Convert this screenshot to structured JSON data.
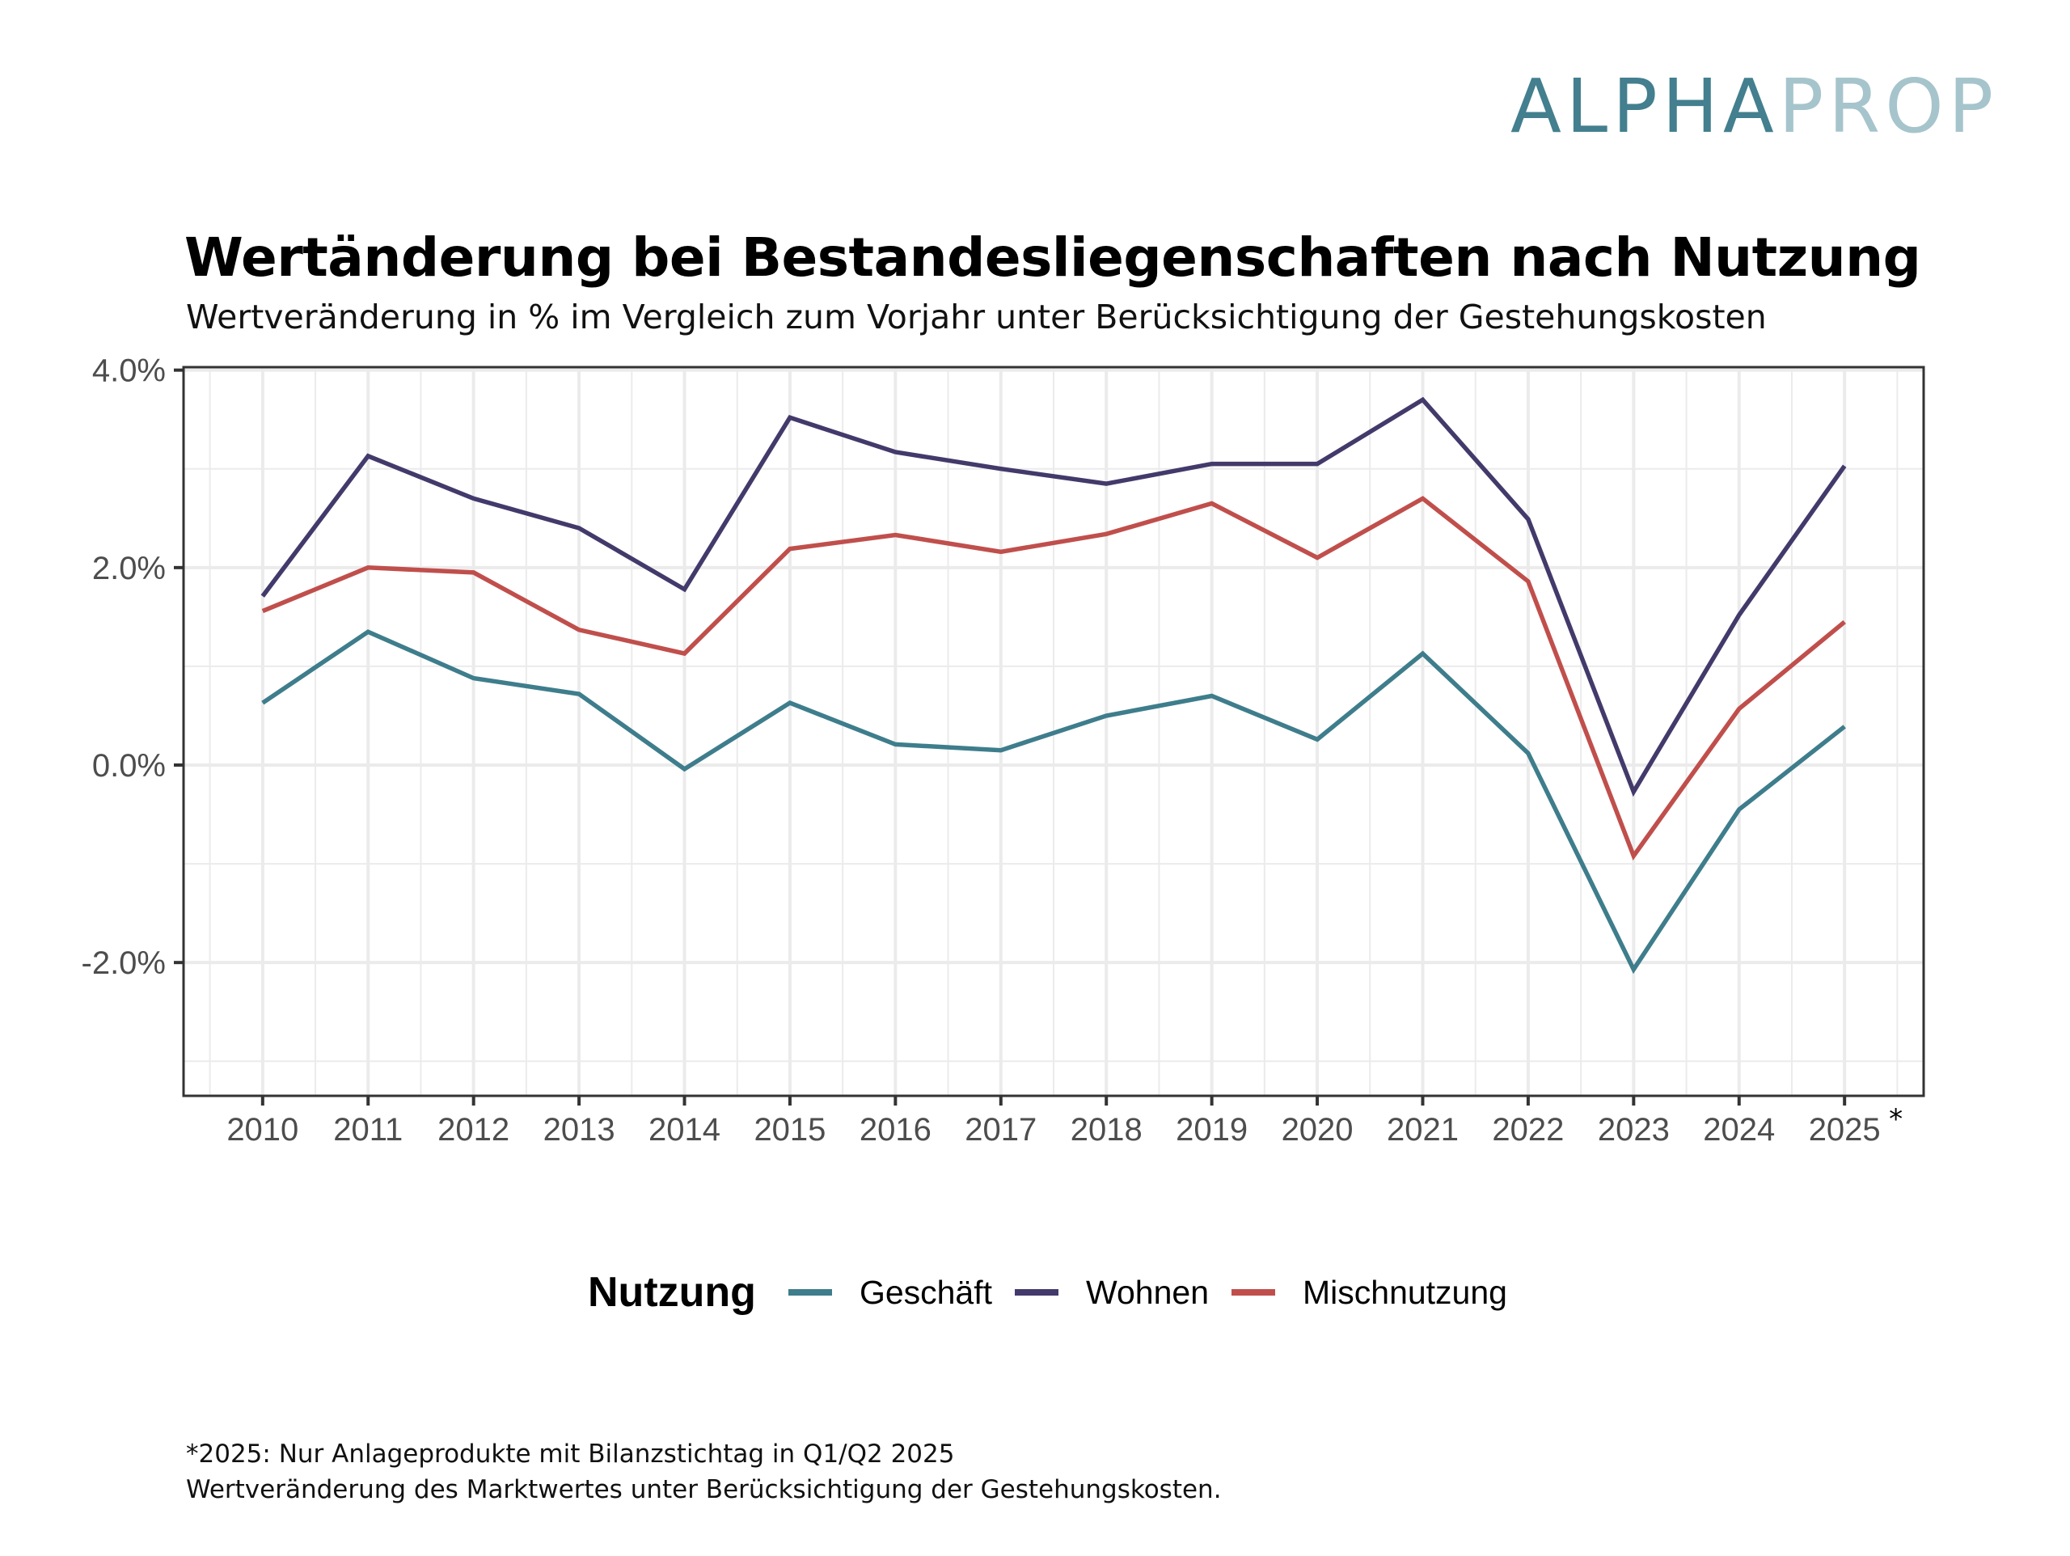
{
  "logo": {
    "part1": "ALPHA",
    "part2": "PROP"
  },
  "header": {
    "title": "Wertänderung bei Bestandesliegenschaften nach Nutzung",
    "subtitle": "Wertveränderung in % im Vergleich zum Vorjahr unter Berücksichtigung der Gestehungskosten"
  },
  "legend": {
    "title": "Nutzung",
    "items": [
      {
        "label": "Geschäft",
        "color": "#3E7D8C"
      },
      {
        "label": "Wohnen",
        "color": "#433A6B"
      },
      {
        "label": "Mischnutzung",
        "color": "#C04F4C"
      }
    ]
  },
  "footnote": {
    "line1": "*2025: Nur Anlageprodukte mit Bilanzstichtag in Q1/Q2 2025",
    "line2": "Wertveränderung des Marktwertes unter Berücksichtigung der Gestehungskosten."
  },
  "chart_data": {
    "type": "line",
    "title": "Wertänderung bei Bestandesliegenschaften nach Nutzung",
    "subtitle": "Wertveränderung in % im Vergleich zum Vorjahr unter Berücksichtigung der Gestehungskosten",
    "xlabel": "",
    "ylabel": "",
    "x": [
      2010,
      2011,
      2012,
      2013,
      2014,
      2015,
      2016,
      2017,
      2018,
      2019,
      2020,
      2021,
      2022,
      2023,
      2024,
      2025
    ],
    "x_tick_labels": [
      "2010",
      "2011",
      "2012",
      "2013",
      "2014",
      "2015",
      "2016",
      "2017",
      "2018",
      "2019",
      "2020",
      "2021",
      "2022",
      "2023",
      "2024",
      "2025"
    ],
    "x_annotation": {
      "x": 2025,
      "text": "*"
    },
    "xlim": [
      2009.25,
      2025.75
    ],
    "ylim": [
      -3.35,
      4.03
    ],
    "y_ticks": [
      4.0,
      2.0,
      0.0,
      -2.0
    ],
    "y_tick_labels": [
      "4.0%",
      "2.0%",
      "0.0%",
      "-2.0%"
    ],
    "y_minor_ticks": [
      3.0,
      1.0,
      -1.0,
      -3.0
    ],
    "grid": true,
    "legend_position": "bottom",
    "series": [
      {
        "name": "Geschäft",
        "color": "#3E7D8C",
        "values": [
          0.63,
          1.35,
          0.88,
          0.72,
          -0.04,
          0.63,
          0.21,
          0.15,
          0.5,
          0.7,
          0.26,
          1.13,
          0.12,
          -2.07,
          -0.45,
          0.39
        ]
      },
      {
        "name": "Wohnen",
        "color": "#433A6B",
        "values": [
          1.71,
          3.13,
          2.7,
          2.4,
          1.78,
          3.52,
          3.17,
          3.0,
          2.85,
          3.05,
          3.05,
          3.7,
          2.49,
          -0.27,
          1.52,
          3.03
        ]
      },
      {
        "name": "Mischnutzung",
        "color": "#C04F4C",
        "values": [
          1.56,
          2.0,
          1.95,
          1.37,
          1.13,
          2.19,
          2.33,
          2.16,
          2.34,
          2.65,
          2.1,
          2.7,
          1.86,
          -0.92,
          0.57,
          1.45
        ]
      }
    ]
  }
}
